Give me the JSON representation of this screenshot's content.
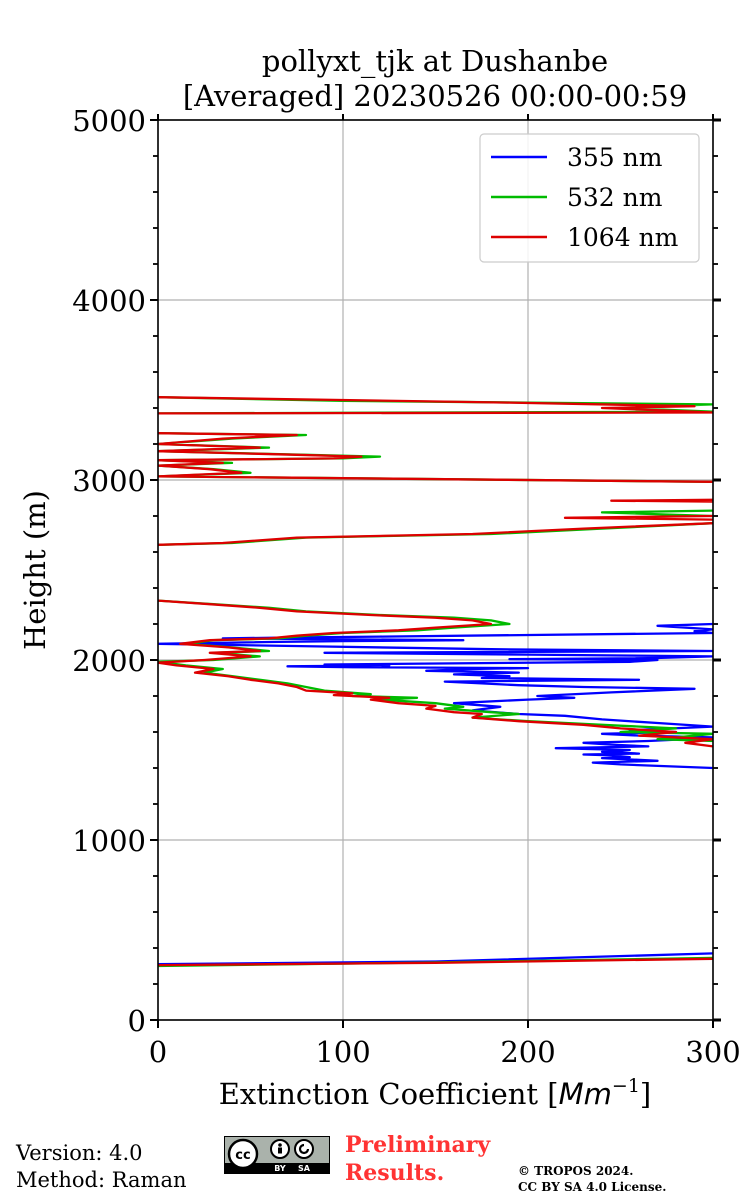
{
  "chart_data": {
    "type": "line",
    "title": "pollyxt_tjk at Dushanbe",
    "subtitle": "[Averaged] 20230526 00:00-00:59",
    "xlabel": "Extinction Coefficient [Mm⁻¹]",
    "xlabel_main": "Extinction Coefficient [",
    "xlabel_unit": "Mm",
    "xlabel_exp": "−1",
    "xlabel_close": "]",
    "ylabel": "Height (m)",
    "xlim": [
      0,
      300
    ],
    "ylim": [
      0,
      5000
    ],
    "xticks": [
      0,
      100,
      200,
      300
    ],
    "xtick_labels": [
      "0",
      "100",
      "200",
      "300"
    ],
    "yticks": [
      0,
      1000,
      2000,
      3000,
      4000,
      5000
    ],
    "ytick_labels": [
      "0",
      "1000",
      "2000",
      "3000",
      "4000",
      "5000"
    ],
    "grid": true,
    "legend_position": "top-right",
    "series": [
      {
        "name": "355 nm",
        "color": "#0000ff",
        "points": [
          [
            0,
            310
          ],
          [
            150,
            325
          ],
          [
            300,
            370
          ],
          [
            null,
            null
          ],
          [
            300,
            1400
          ],
          [
            250,
            1420
          ],
          [
            235,
            1430
          ],
          [
            270,
            1440
          ],
          [
            250,
            1450
          ],
          [
            240,
            1455
          ],
          [
            255,
            1460
          ],
          [
            245,
            1470
          ],
          [
            230,
            1475
          ],
          [
            260,
            1480
          ],
          [
            240,
            1490
          ],
          [
            255,
            1500
          ],
          [
            215,
            1510
          ],
          [
            265,
            1520
          ],
          [
            245,
            1530
          ],
          [
            230,
            1540
          ],
          [
            265,
            1550
          ],
          [
            285,
            1560
          ],
          [
            300,
            1570
          ],
          [
            260,
            1580
          ],
          [
            240,
            1590
          ],
          [
            280,
            1600
          ],
          [
            255,
            1610
          ],
          [
            300,
            1630
          ],
          [
            270,
            1650
          ],
          [
            240,
            1670
          ],
          [
            220,
            1690
          ],
          [
            195,
            1700
          ],
          [
            170,
            1720
          ],
          [
            185,
            1740
          ],
          [
            160,
            1760
          ],
          [
            200,
            1780
          ],
          [
            225,
            1790
          ],
          [
            205,
            1800
          ],
          [
            245,
            1820
          ],
          [
            290,
            1840
          ],
          [
            230,
            1850
          ],
          [
            195,
            1860
          ],
          [
            175,
            1870
          ],
          [
            155,
            1880
          ],
          [
            260,
            1890
          ],
          [
            175,
            1900
          ],
          [
            190,
            1910
          ],
          [
            160,
            1920
          ],
          [
            195,
            1930
          ],
          [
            145,
            1940
          ],
          [
            170,
            1950
          ],
          [
            200,
            1955
          ],
          [
            105,
            1960
          ],
          [
            70,
            1965
          ],
          [
            125,
            1970
          ],
          [
            90,
            1975
          ],
          [
            255,
            1990
          ],
          [
            270,
            2000
          ],
          [
            190,
            2005
          ],
          [
            265,
            2010
          ],
          [
            300,
            2020
          ],
          [
            200,
            2030
          ],
          [
            90,
            2040
          ],
          [
            300,
            2050
          ],
          [
            180,
            2060
          ],
          [
            90,
            2075
          ],
          [
            0,
            2090
          ],
          [
            60,
            2100
          ],
          [
            100,
            2105
          ],
          [
            165,
            2110
          ],
          [
            35,
            2120
          ],
          [
            70,
            2125
          ],
          [
            120,
            2130
          ],
          [
            300,
            2150
          ],
          [
            290,
            2160
          ],
          [
            300,
            2170
          ],
          [
            270,
            2190
          ],
          [
            300,
            2200
          ]
        ]
      },
      {
        "name": "532 nm",
        "color": "#00bb00",
        "points": [
          [
            0,
            300
          ],
          [
            150,
            320
          ],
          [
            300,
            345
          ],
          [
            null,
            null
          ],
          [
            300,
            1550
          ],
          [
            270,
            1560
          ],
          [
            290,
            1580
          ],
          [
            300,
            1590
          ],
          [
            250,
            1600
          ],
          [
            280,
            1620
          ],
          [
            240,
            1640
          ],
          [
            200,
            1660
          ],
          [
            170,
            1680
          ],
          [
            195,
            1700
          ],
          [
            180,
            1710
          ],
          [
            155,
            1730
          ],
          [
            165,
            1740
          ],
          [
            150,
            1760
          ],
          [
            120,
            1780
          ],
          [
            140,
            1790
          ],
          [
            105,
            1800
          ],
          [
            115,
            1810
          ],
          [
            90,
            1830
          ],
          [
            80,
            1850
          ],
          [
            70,
            1870
          ],
          [
            55,
            1890
          ],
          [
            40,
            1910
          ],
          [
            25,
            1930
          ],
          [
            35,
            1950
          ],
          [
            15,
            1970
          ],
          [
            0,
            1990
          ],
          [
            30,
            2000
          ],
          [
            55,
            2020
          ],
          [
            30,
            2040
          ],
          [
            60,
            2050
          ],
          [
            40,
            2070
          ],
          [
            15,
            2090
          ],
          [
            30,
            2110
          ],
          [
            65,
            2120
          ],
          [
            80,
            2135
          ],
          [
            100,
            2150
          ],
          [
            140,
            2165
          ],
          [
            160,
            2180
          ],
          [
            190,
            2200
          ],
          [
            180,
            2220
          ],
          [
            160,
            2235
          ],
          [
            120,
            2250
          ],
          [
            80,
            2270
          ],
          [
            60,
            2290
          ],
          [
            30,
            2310
          ],
          [
            0,
            2330
          ],
          [
            null,
            null
          ],
          [
            0,
            2640
          ],
          [
            40,
            2650
          ],
          [
            80,
            2680
          ],
          [
            180,
            2700
          ],
          [
            240,
            2730
          ],
          [
            300,
            2760
          ],
          [
            null,
            null
          ],
          [
            300,
            2800
          ],
          [
            240,
            2820
          ],
          [
            300,
            2830
          ],
          [
            null,
            null
          ],
          [
            300,
            2990
          ],
          [
            0,
            3020
          ],
          [
            50,
            3040
          ],
          [
            30,
            3060
          ],
          [
            0,
            3080
          ],
          [
            40,
            3095
          ],
          [
            0,
            3110
          ],
          [
            100,
            3120
          ],
          [
            120,
            3130
          ],
          [
            80,
            3140
          ],
          [
            0,
            3160
          ],
          [
            60,
            3180
          ],
          [
            0,
            3200
          ],
          [
            40,
            3230
          ],
          [
            80,
            3250
          ],
          [
            0,
            3260
          ],
          [
            null,
            null
          ],
          [
            0,
            3370
          ],
          [
            300,
            3380
          ],
          [
            250,
            3400
          ],
          [
            300,
            3420
          ],
          [
            200,
            3430
          ],
          [
            100,
            3440
          ],
          [
            0,
            3460
          ]
        ]
      },
      {
        "name": "1064 nm",
        "color": "#dd0000",
        "points": [
          [
            0,
            305
          ],
          [
            150,
            318
          ],
          [
            300,
            340
          ],
          [
            null,
            null
          ],
          [
            300,
            1520
          ],
          [
            285,
            1540
          ],
          [
            300,
            1560
          ],
          [
            260,
            1580
          ],
          [
            280,
            1600
          ],
          [
            250,
            1620
          ],
          [
            230,
            1640
          ],
          [
            195,
            1660
          ],
          [
            170,
            1680
          ],
          [
            175,
            1700
          ],
          [
            160,
            1710
          ],
          [
            145,
            1730
          ],
          [
            150,
            1745
          ],
          [
            130,
            1760
          ],
          [
            115,
            1780
          ],
          [
            125,
            1790
          ],
          [
            95,
            1805
          ],
          [
            105,
            1815
          ],
          [
            80,
            1830
          ],
          [
            75,
            1850
          ],
          [
            65,
            1870
          ],
          [
            50,
            1890
          ],
          [
            38,
            1910
          ],
          [
            20,
            1930
          ],
          [
            30,
            1950
          ],
          [
            10,
            1970
          ],
          [
            0,
            1985
          ],
          [
            25,
            2000
          ],
          [
            50,
            2020
          ],
          [
            28,
            2040
          ],
          [
            55,
            2050
          ],
          [
            38,
            2070
          ],
          [
            12,
            2090
          ],
          [
            28,
            2110
          ],
          [
            60,
            2120
          ],
          [
            75,
            2135
          ],
          [
            95,
            2150
          ],
          [
            130,
            2165
          ],
          [
            150,
            2180
          ],
          [
            180,
            2200
          ],
          [
            170,
            2220
          ],
          [
            150,
            2235
          ],
          [
            115,
            2250
          ],
          [
            75,
            2270
          ],
          [
            55,
            2290
          ],
          [
            28,
            2310
          ],
          [
            0,
            2330
          ],
          [
            null,
            null
          ],
          [
            0,
            2640
          ],
          [
            35,
            2650
          ],
          [
            75,
            2680
          ],
          [
            170,
            2700
          ],
          [
            230,
            2730
          ],
          [
            300,
            2760
          ],
          [
            null,
            null
          ],
          [
            300,
            2780
          ],
          [
            220,
            2790
          ],
          [
            300,
            2800
          ],
          [
            null,
            null
          ],
          [
            300,
            2880
          ],
          [
            245,
            2885
          ],
          [
            300,
            2890
          ],
          [
            null,
            null
          ],
          [
            300,
            2990
          ],
          [
            0,
            3020
          ],
          [
            45,
            3040
          ],
          [
            28,
            3060
          ],
          [
            0,
            3080
          ],
          [
            35,
            3095
          ],
          [
            0,
            3110
          ],
          [
            95,
            3120
          ],
          [
            110,
            3130
          ],
          [
            75,
            3140
          ],
          [
            0,
            3160
          ],
          [
            55,
            3180
          ],
          [
            0,
            3200
          ],
          [
            35,
            3230
          ],
          [
            75,
            3250
          ],
          [
            0,
            3260
          ],
          [
            null,
            null
          ],
          [
            0,
            3370
          ],
          [
            300,
            3375
          ],
          [
            240,
            3400
          ],
          [
            290,
            3410
          ],
          [
            190,
            3430
          ],
          [
            95,
            3445
          ],
          [
            0,
            3460
          ]
        ]
      }
    ]
  },
  "footer": {
    "version": "Version: 4.0",
    "method": "Method: Raman",
    "preliminary_line1": "Preliminary",
    "preliminary_line2": "Results.",
    "copyright_line1": "© TROPOS 2024.",
    "copyright_line2": "CC BY SA 4.0 License.",
    "cc_label": "cc",
    "by_label": "BY",
    "sa_label": "SA"
  }
}
